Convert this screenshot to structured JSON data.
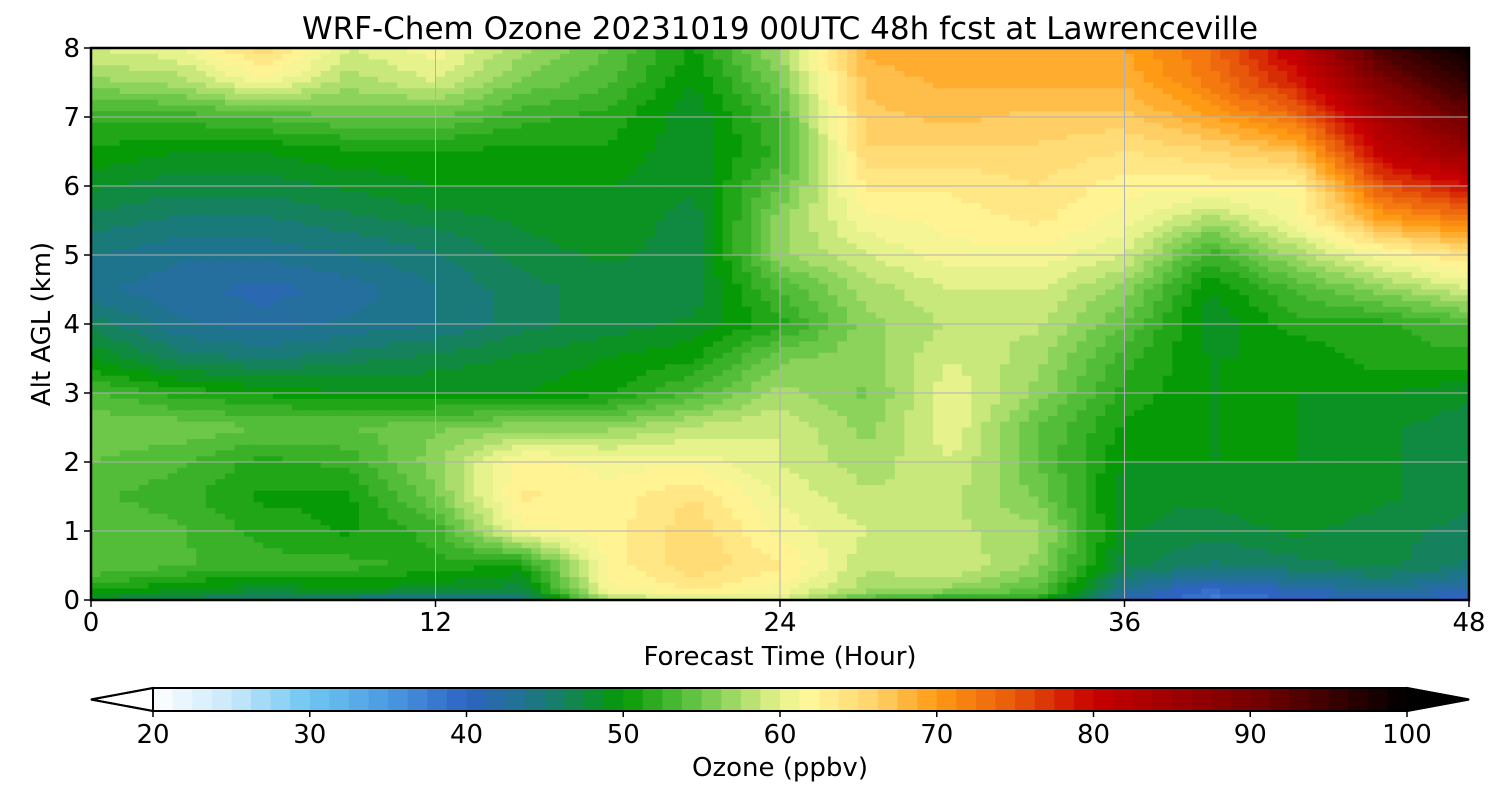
{
  "chart_data": {
    "type": "heatmap",
    "title": "WRF-Chem Ozone  20231019 00UTC 48h fcst at Lawrenceville",
    "xlabel": "Forecast Time (Hour)",
    "ylabel": "Alt AGL (km)",
    "x_ticks": [
      "0",
      "12",
      "24",
      "36",
      "48"
    ],
    "y_ticks": [
      "0",
      "1",
      "2",
      "3",
      "4",
      "5",
      "6",
      "7",
      "8"
    ],
    "xlim": [
      0,
      48
    ],
    "ylim": [
      0,
      8
    ],
    "grid": true,
    "colorbar": {
      "label": "Ozone  (ppbv)",
      "ticks": [
        "20",
        "30",
        "40",
        "50",
        "60",
        "70",
        "80",
        "90",
        "100"
      ],
      "range": [
        20,
        100
      ],
      "extend": "both",
      "stops": [
        {
          "v": 20,
          "c": "#ffffff"
        },
        {
          "v": 25,
          "c": "#c8e8fa"
        },
        {
          "v": 30,
          "c": "#6ec6f2"
        },
        {
          "v": 35,
          "c": "#4a9ae0"
        },
        {
          "v": 40,
          "c": "#2f63c4"
        },
        {
          "v": 45,
          "c": "#1a7a7a"
        },
        {
          "v": 50,
          "c": "#069a06"
        },
        {
          "v": 55,
          "c": "#6dc84a"
        },
        {
          "v": 60,
          "c": "#e6f28c"
        },
        {
          "v": 62,
          "c": "#fff79a"
        },
        {
          "v": 66,
          "c": "#ffd36a"
        },
        {
          "v": 70,
          "c": "#ff9a14"
        },
        {
          "v": 75,
          "c": "#e8580a"
        },
        {
          "v": 80,
          "c": "#c80000"
        },
        {
          "v": 90,
          "c": "#780000"
        },
        {
          "v": 100,
          "c": "#000000"
        }
      ]
    },
    "hours": [
      0,
      3,
      6,
      9,
      12,
      15,
      18,
      21,
      24,
      27,
      30,
      33,
      36,
      39,
      42,
      45,
      48
    ],
    "altitudes_km": [
      0,
      0.15,
      0.5,
      1,
      1.5,
      2,
      2.5,
      3,
      3.5,
      4,
      4.5,
      5,
      5.5,
      6,
      6.5,
      7,
      7.5,
      8
    ],
    "values": [
      [
        48,
        47,
        46,
        45,
        44,
        45,
        58,
        60,
        60,
        54,
        52,
        52,
        42,
        38,
        40,
        42,
        40
      ],
      [
        52,
        50,
        49,
        50,
        49,
        48,
        62,
        64,
        62,
        58,
        57,
        55,
        44,
        40,
        42,
        44,
        42
      ],
      [
        55,
        54,
        53,
        53,
        52,
        51,
        63,
        66,
        64,
        59,
        60,
        57,
        48,
        46,
        47,
        48,
        46
      ],
      [
        55,
        54,
        52,
        51,
        53,
        62,
        63,
        66,
        62,
        60,
        59,
        58,
        49,
        48,
        49,
        48,
        47
      ],
      [
        54,
        53,
        51,
        51,
        56,
        64,
        63,
        65,
        61,
        59,
        59,
        56,
        49,
        49,
        50,
        49,
        48
      ],
      [
        55,
        54,
        52,
        53,
        57,
        63,
        62,
        62,
        60,
        58,
        60,
        55,
        50,
        50,
        50,
        49,
        48
      ],
      [
        56,
        56,
        55,
        55,
        56,
        57,
        57,
        59,
        60,
        57,
        61,
        55,
        51,
        50,
        50,
        49,
        48
      ],
      [
        54,
        52,
        51,
        50,
        50,
        50,
        51,
        54,
        58,
        56,
        61,
        57,
        52,
        50,
        50,
        50,
        49
      ],
      [
        50,
        47,
        46,
        47,
        48,
        49,
        50,
        51,
        56,
        57,
        60,
        58,
        53,
        50,
        50,
        52,
        52
      ],
      [
        47,
        44,
        43,
        44,
        45,
        47,
        48,
        49,
        52,
        57,
        59,
        59,
        55,
        49,
        52,
        52,
        54
      ],
      [
        44,
        43,
        42,
        43,
        45,
        47,
        48,
        48,
        54,
        58,
        60,
        60,
        57,
        50,
        54,
        57,
        60
      ],
      [
        45,
        44,
        44,
        45,
        46,
        48,
        49,
        48,
        57,
        60,
        62,
        62,
        60,
        53,
        58,
        62,
        65
      ],
      [
        47,
        46,
        46,
        47,
        48,
        49,
        50,
        48,
        57,
        62,
        63,
        64,
        62,
        58,
        62,
        70,
        73
      ],
      [
        49,
        48,
        48,
        49,
        50,
        50,
        50,
        49,
        55,
        64,
        64,
        65,
        63,
        63,
        63,
        76,
        80
      ],
      [
        51,
        50,
        50,
        51,
        51,
        51,
        51,
        49,
        53,
        66,
        66,
        66,
        65,
        66,
        68,
        82,
        87
      ],
      [
        53,
        53,
        54,
        55,
        55,
        53,
        52,
        49,
        54,
        67,
        68,
        67,
        67,
        70,
        74,
        85,
        92
      ],
      [
        57,
        58,
        62,
        58,
        60,
        56,
        54,
        50,
        56,
        68,
        69,
        69,
        69,
        73,
        79,
        90,
        97
      ],
      [
        60,
        61,
        66,
        60,
        62,
        58,
        55,
        51,
        58,
        69,
        70,
        70,
        70,
        74,
        82,
        95,
        100
      ]
    ]
  }
}
